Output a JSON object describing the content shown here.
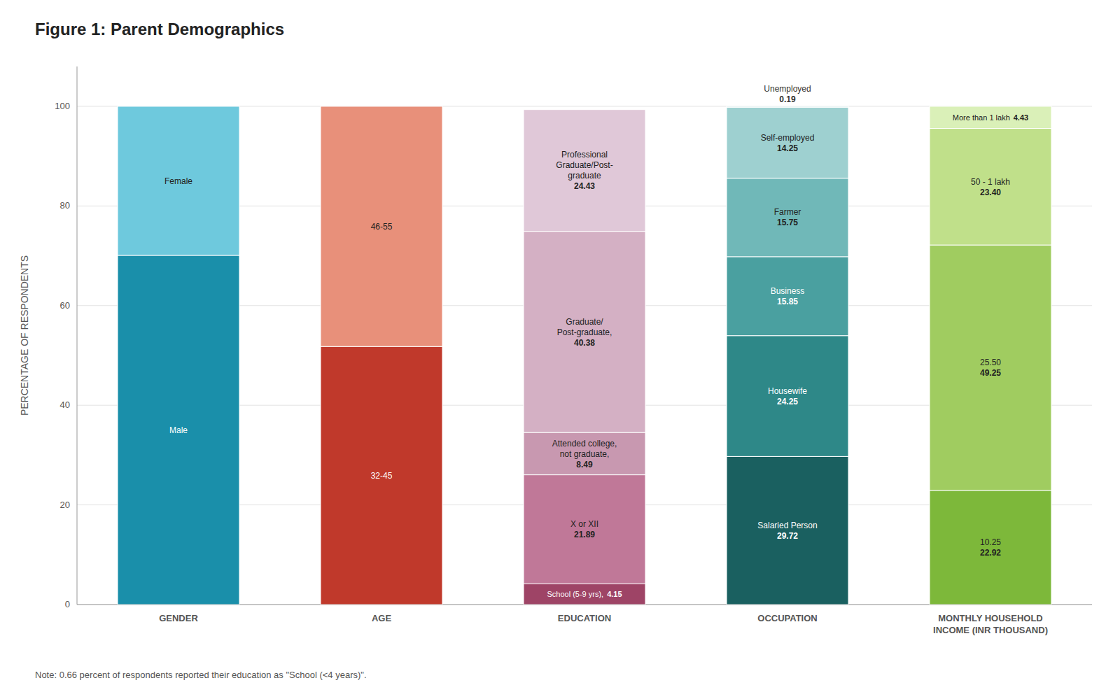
{
  "chart_data": {
    "type": "bar",
    "stacked": true,
    "title": "Figure 1: Parent Demographics",
    "y_label": "PERCENTAGE OF RESPONDENTS",
    "note": "Note: 0.66 percent of respondents reported their education as \"School (<4 years)\".",
    "categories": [
      "GENDER",
      "AGE",
      "EDUCATION",
      "OCCUPATION",
      "MONTHLY HOUSEHOLD\nINCOME (INR THOUSAND)"
    ],
    "series": [
      {
        "name": "Male",
        "color": "#1a8faa",
        "values": [
          70.09,
          null,
          null,
          null,
          null
        ]
      },
      {
        "name": "Female",
        "color": "#6ec9dd",
        "values": [
          29.91,
          null,
          null,
          null,
          null
        ]
      },
      {
        "name": "32-45",
        "color": "#c0392b",
        "values": [
          null,
          51.79,
          null,
          null,
          null
        ]
      },
      {
        "name": "46-55",
        "color": "#e8907a",
        "values": [
          null,
          48.21,
          null,
          null,
          null
        ]
      },
      {
        "name": "School (5-9 yrs),",
        "color": "#9e4466",
        "values": [
          null,
          null,
          4.15,
          null,
          null
        ],
        "value_labels": [
          null,
          null,
          "4.15",
          null,
          null
        ]
      },
      {
        "name": "X or XII",
        "color": "#c07898",
        "values": [
          null,
          null,
          21.89,
          null,
          null
        ],
        "value_labels": [
          null,
          null,
          "21.89",
          null,
          null
        ]
      },
      {
        "name": "Attended college,\nnot graduate,",
        "color": "#c898b0",
        "values": [
          null,
          null,
          8.49,
          null,
          null
        ],
        "value_labels": [
          null,
          null,
          "8.49",
          null,
          null
        ]
      },
      {
        "name": "Graduate/\nPost-graduate,",
        "color": "#d4b0c4",
        "values": [
          null,
          null,
          40.38,
          null,
          null
        ],
        "value_labels": [
          null,
          null,
          "40.38",
          null,
          null
        ]
      },
      {
        "name": "Professional\nGraduate/Post-\ngraduate",
        "color": "#e0c8d8",
        "values": [
          null,
          null,
          24.43,
          null,
          null
        ],
        "value_labels": [
          null,
          null,
          "24.43",
          null,
          null
        ]
      },
      {
        "name": "Salaried Person",
        "color": "#1a6060",
        "values": [
          null,
          null,
          null,
          29.72,
          null
        ],
        "value_labels": [
          null,
          null,
          null,
          "29.72",
          null
        ]
      },
      {
        "name": "Housewife",
        "color": "#2e8888",
        "values": [
          null,
          null,
          null,
          24.25,
          null
        ],
        "value_labels": [
          null,
          null,
          null,
          "24.25",
          null
        ]
      },
      {
        "name": "Business",
        "color": "#4aa0a0",
        "values": [
          null,
          null,
          null,
          15.85,
          null
        ],
        "value_labels": [
          null,
          null,
          null,
          "15.85",
          null
        ]
      },
      {
        "name": "Farmer",
        "color": "#70b8b8",
        "values": [
          null,
          null,
          null,
          15.75,
          null
        ],
        "value_labels": [
          null,
          null,
          null,
          "15.75",
          null
        ]
      },
      {
        "name": "Self-employed",
        "color": "#9ed0d0",
        "values": [
          null,
          null,
          null,
          14.25,
          null
        ],
        "value_labels": [
          null,
          null,
          null,
          "14.25",
          null
        ]
      },
      {
        "name": "Unemployed",
        "color": "#c8e4e4",
        "values": [
          null,
          null,
          null,
          0.19,
          null
        ],
        "value_labels": [
          null,
          null,
          null,
          "0.19",
          null
        ]
      },
      {
        "name": "10.25",
        "color": "#7db83a",
        "values": [
          null,
          null,
          null,
          null,
          22.92
        ],
        "value_labels": [
          null,
          null,
          null,
          null,
          "22.92"
        ]
      },
      {
        "name": "25.50",
        "color": "#a0cc60",
        "values": [
          null,
          null,
          null,
          null,
          49.25
        ],
        "value_labels": [
          null,
          null,
          null,
          null,
          "49.25"
        ]
      },
      {
        "name": "50 - 1 lakh",
        "color": "#c0e08a",
        "values": [
          null,
          null,
          null,
          null,
          23.4
        ],
        "value_labels": [
          null,
          null,
          null,
          null,
          "23.40"
        ]
      },
      {
        "name": "More than 1 lakh",
        "color": "#daf0b8",
        "values": [
          null,
          null,
          null,
          null,
          4.43
        ],
        "value_labels": [
          null,
          null,
          null,
          null,
          "4.43"
        ]
      }
    ],
    "data_labels": true,
    "ylim": [
      0,
      108
    ],
    "yticks": [
      0,
      20,
      40,
      60,
      80,
      100
    ],
    "grid": true
  }
}
